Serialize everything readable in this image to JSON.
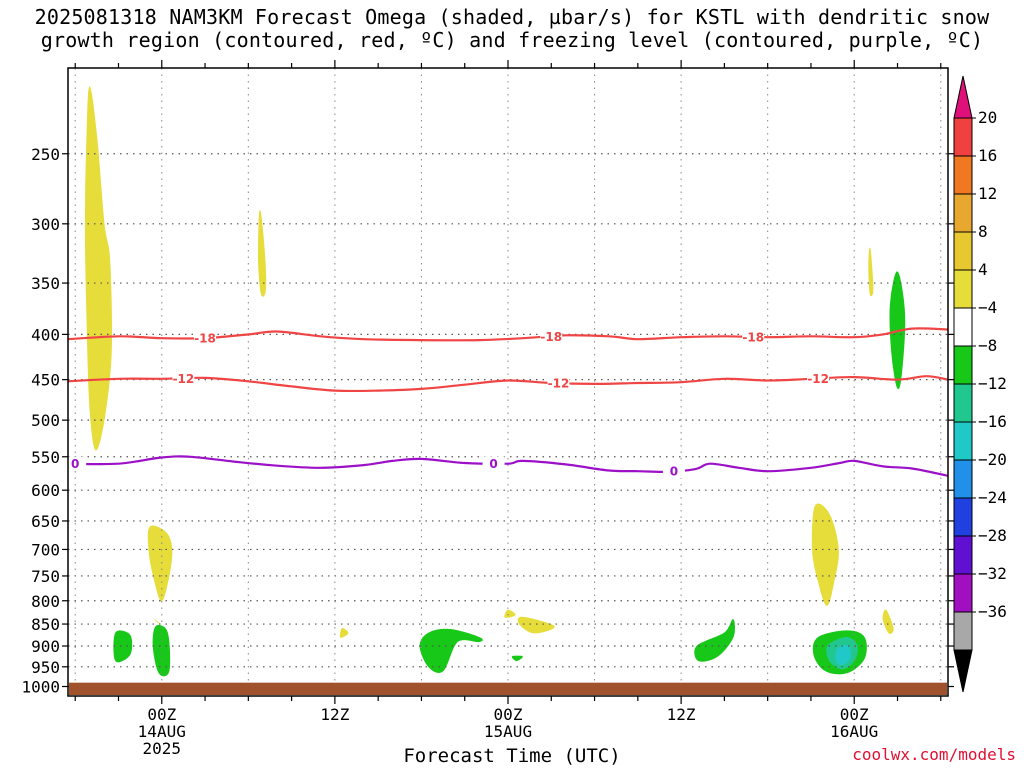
{
  "title": {
    "line1": "2025081318 NAM3KM Forecast Omega (shaded, µbar/s) for KSTL with dendritic snow",
    "line2": "growth region (contoured, red, ºC) and freezing level (contoured, purple, ºC)"
  },
  "watermark": "coolwx.com/models",
  "chart_data": {
    "type": "time-height cross section",
    "title": "2025081318 NAM3KM Forecast Omega (shaded, µbar/s) for KSTL with dendritic snow growth region (contoured, red, ºC) and freezing level (contoured, purple, ºC)",
    "xlabel": "Forecast Time (UTC)",
    "ylabel": "",
    "x_hours_range": [
      -6.5,
      54.5
    ],
    "y_pressure_range_hPa": [
      1025,
      200
    ],
    "y_log_scale": true,
    "grid": true,
    "x_ticks": [
      {
        "hour": 0,
        "lines": [
          "00Z",
          "14AUG",
          "2025"
        ]
      },
      {
        "hour": 12,
        "lines": [
          "12Z"
        ]
      },
      {
        "hour": 24,
        "lines": [
          "00Z",
          "15AUG"
        ]
      },
      {
        "hour": 36,
        "lines": [
          "12Z"
        ]
      },
      {
        "hour": 48,
        "lines": [
          "00Z",
          "16AUG"
        ]
      }
    ],
    "y_ticks": [
      250,
      300,
      350,
      400,
      450,
      500,
      550,
      600,
      650,
      700,
      750,
      800,
      850,
      900,
      950,
      1000
    ],
    "colorbar": {
      "labels": [
        "20",
        "16",
        "12",
        "8",
        "4",
        "−4",
        "−8",
        "−12",
        "−16",
        "−20",
        "−24",
        "−28",
        "−32",
        "−36"
      ],
      "colors": [
        "#f04040",
        "#f07820",
        "#e8a830",
        "#e8c830",
        "#e6dc3a",
        "#ffffff",
        "#18c818",
        "#20c890",
        "#20c8c8",
        "#2090e8",
        "#2040e0",
        "#6010d0",
        "#a010c0",
        "#a8a8a8"
      ],
      "top_arrow": "#e0107a",
      "bottom_arrow": "#000000"
    },
    "contours": [
      {
        "name": "-18",
        "color": "#f04545",
        "labels": [
          "-18",
          "-18",
          "-18"
        ],
        "points": [
          [
            -6.5,
            405
          ],
          [
            -3,
            402
          ],
          [
            0,
            404
          ],
          [
            3,
            404
          ],
          [
            6,
            400
          ],
          [
            8,
            397
          ],
          [
            11,
            402
          ],
          [
            14,
            405
          ],
          [
            18,
            406
          ],
          [
            22,
            406
          ],
          [
            25,
            404
          ],
          [
            28,
            401
          ],
          [
            31,
            402
          ],
          [
            33,
            405
          ],
          [
            36,
            403
          ],
          [
            39,
            402
          ],
          [
            42,
            403
          ],
          [
            45,
            402
          ],
          [
            48,
            403
          ],
          [
            50,
            400
          ],
          [
            52,
            394
          ],
          [
            54.5,
            395
          ]
        ]
      },
      {
        "name": "-12",
        "color": "#f04545",
        "labels": [
          "-12",
          "-12",
          "-12"
        ],
        "points": [
          [
            -6.5,
            452
          ],
          [
            -3,
            449
          ],
          [
            0,
            449
          ],
          [
            3,
            448
          ],
          [
            6,
            452
          ],
          [
            9,
            458
          ],
          [
            12,
            463
          ],
          [
            15,
            463
          ],
          [
            18,
            461
          ],
          [
            21,
            456
          ],
          [
            24,
            451
          ],
          [
            27,
            454
          ],
          [
            30,
            455
          ],
          [
            33,
            454
          ],
          [
            36,
            453
          ],
          [
            39,
            449
          ],
          [
            42,
            451
          ],
          [
            45,
            449
          ],
          [
            48,
            447
          ],
          [
            51,
            450
          ],
          [
            53,
            446
          ],
          [
            54.5,
            450
          ]
        ]
      },
      {
        "name": "0",
        "color": "#9c10c8",
        "labels": [
          "0",
          "0",
          "0"
        ],
        "points": [
          [
            -6.5,
            560
          ],
          [
            -3,
            560
          ],
          [
            0,
            551
          ],
          [
            2,
            550
          ],
          [
            5,
            557
          ],
          [
            8,
            563
          ],
          [
            11,
            566
          ],
          [
            14,
            562
          ],
          [
            16,
            556
          ],
          [
            18,
            553
          ],
          [
            21,
            559
          ],
          [
            24,
            560
          ],
          [
            25,
            556
          ],
          [
            28,
            561
          ],
          [
            31,
            570
          ],
          [
            33,
            571
          ],
          [
            35,
            572
          ],
          [
            37,
            568
          ],
          [
            38,
            560
          ],
          [
            40,
            566
          ],
          [
            42,
            571
          ],
          [
            45,
            566
          ],
          [
            47,
            559
          ],
          [
            48,
            556
          ],
          [
            50,
            564
          ],
          [
            52,
            567
          ],
          [
            54.5,
            578
          ]
        ]
      }
    ],
    "omega_regions": [
      {
        "level": "4-8",
        "color": "#e6dc3a",
        "points": [
          [
            -5,
            210
          ],
          [
            -4.5,
            240
          ],
          [
            -4,
            300
          ],
          [
            -3.6,
            330
          ],
          [
            -3.5,
            420
          ],
          [
            -4,
            500
          ],
          [
            -4.6,
            540
          ],
          [
            -5,
            480
          ],
          [
            -5.2,
            380
          ],
          [
            -5.3,
            300
          ],
          [
            -5.2,
            240
          ]
        ]
      },
      {
        "level": "4-8",
        "color": "#e6dc3a",
        "points": [
          [
            6.8,
            290
          ],
          [
            7.1,
            320
          ],
          [
            7.2,
            355
          ],
          [
            6.9,
            360
          ],
          [
            6.7,
            330
          ]
        ]
      },
      {
        "level": "4-8",
        "color": "#e6dc3a",
        "points": [
          [
            -0.8,
            660
          ],
          [
            0.3,
            670
          ],
          [
            0.7,
            700
          ],
          [
            0.5,
            750
          ],
          [
            0,
            800
          ],
          [
            -0.5,
            760
          ],
          [
            -0.9,
            700
          ]
        ]
      },
      {
        "level": "4-8",
        "color": "#e6dc3a",
        "points": [
          [
            45.3,
            625
          ],
          [
            46.3,
            640
          ],
          [
            46.9,
            700
          ],
          [
            46.6,
            760
          ],
          [
            46.1,
            810
          ],
          [
            45.5,
            760
          ],
          [
            45.1,
            700
          ]
        ]
      },
      {
        "level": "4-8",
        "color": "#e6dc3a",
        "points": [
          [
            50.2,
            820
          ],
          [
            50.7,
            860
          ],
          [
            50.4,
            870
          ],
          [
            50,
            840
          ]
        ]
      },
      {
        "level": "4-8",
        "color": "#e6dc3a",
        "points": [
          [
            49.1,
            320
          ],
          [
            49.3,
            355
          ],
          [
            49.1,
            360
          ],
          [
            49,
            335
          ]
        ]
      },
      {
        "level": "4-8",
        "color": "#e6dc3a",
        "points": [
          [
            12.5,
            860
          ],
          [
            12.9,
            870
          ],
          [
            12.4,
            880
          ]
        ]
      },
      {
        "level": "4-8",
        "color": "#e6dc3a",
        "points": [
          [
            -0.5,
            840
          ],
          [
            -0.1,
            850
          ]
        ]
      },
      {
        "level": "4-8",
        "color": "#e6dc3a",
        "points": [
          [
            24,
            820
          ],
          [
            24.5,
            830
          ],
          [
            23.8,
            835
          ]
        ]
      },
      {
        "level": "4-8",
        "color": "#e6dc3a",
        "points": [
          [
            25,
            835
          ],
          [
            27.2,
            855
          ],
          [
            25.8,
            870
          ],
          [
            24.8,
            850
          ]
        ]
      },
      {
        "level": "-4 to -8",
        "color": "#18c818",
        "points": [
          [
            -3.2,
            870
          ],
          [
            -2.2,
            875
          ],
          [
            -2.2,
            920
          ],
          [
            -3.2,
            935
          ]
        ]
      },
      {
        "level": "-4 to -8",
        "color": "#18c818",
        "points": [
          [
            -0.4,
            855
          ],
          [
            0.4,
            870
          ],
          [
            0.5,
            960
          ],
          [
            -0.2,
            965
          ],
          [
            -0.6,
            900
          ]
        ]
      },
      {
        "level": "-4 to -8",
        "color": "#18c818",
        "points": [
          [
            51,
            340
          ],
          [
            51.5,
            380
          ],
          [
            51.3,
            440
          ],
          [
            51,
            460
          ],
          [
            50.6,
            420
          ],
          [
            50.5,
            370
          ]
        ]
      },
      {
        "level": "-4 to -8",
        "color": "#18c818",
        "points": [
          [
            18.5,
            870
          ],
          [
            20,
            862
          ],
          [
            22,
            880
          ],
          [
            22,
            890
          ],
          [
            20.5,
            890
          ],
          [
            19.5,
            960
          ],
          [
            18.5,
            950
          ],
          [
            17.9,
            900
          ]
        ]
      },
      {
        "level": "-4 to -8",
        "color": "#18c818",
        "points": [
          [
            37.1,
            900
          ],
          [
            39,
            870
          ],
          [
            39.6,
            840
          ],
          [
            39.6,
            880
          ],
          [
            38.5,
            925
          ],
          [
            37.2,
            935
          ]
        ]
      },
      {
        "level": "-4 to -8",
        "color": "#18c818",
        "points": [
          [
            45.5,
            880
          ],
          [
            47.5,
            865
          ],
          [
            48.7,
            880
          ],
          [
            48.7,
            930
          ],
          [
            47.5,
            965
          ],
          [
            46,
            960
          ],
          [
            45.2,
            920
          ]
        ]
      },
      {
        "level": "-8 to -12",
        "color": "#20c890",
        "points": [
          [
            46.3,
            895
          ],
          [
            47.5,
            880
          ],
          [
            48.2,
            900
          ],
          [
            48,
            935
          ],
          [
            47.2,
            955
          ],
          [
            46.4,
            940
          ],
          [
            46.1,
            915
          ]
        ]
      },
      {
        "level": "-12 to -16",
        "color": "#20c8c8",
        "points": [
          [
            46.9,
            905
          ],
          [
            47.6,
            900
          ],
          [
            47.7,
            930
          ],
          [
            47.1,
            945
          ],
          [
            46.7,
            930
          ]
        ]
      },
      {
        "level": "-4 to -8",
        "color": "#18c818",
        "points": [
          [
            24.3,
            925
          ],
          [
            25,
            925
          ],
          [
            24.6,
            935
          ]
        ]
      }
    ],
    "surface": {
      "color": "#a0522d",
      "top_hPa": 990
    }
  }
}
